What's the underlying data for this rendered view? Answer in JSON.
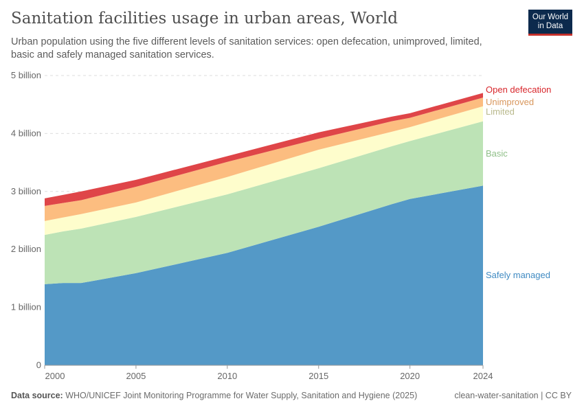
{
  "title": "Sanitation facilities usage in urban areas, World",
  "subtitle": "Urban population using the five different levels of sanitation services: open defecation, unimproved, limited, basic and safely managed sanitation services.",
  "logo": {
    "line1": "Our World",
    "line2": "in Data"
  },
  "footer": {
    "source_label": "Data source:",
    "source_text": "WHO/UNICEF Joint Monitoring Programme for Water Supply, Sanitation and Hygiene (2025)",
    "license": "clean-water-sanitation | CC BY"
  },
  "chart_data": {
    "type": "area",
    "stacked": true,
    "x": [
      2000,
      2001,
      2002,
      2005,
      2010,
      2015,
      2019,
      2020,
      2024
    ],
    "xlim": [
      2000,
      2024
    ],
    "ylim": [
      0,
      5000000000
    ],
    "grid": true,
    "legend": "right (inline labels)",
    "x_ticks": [
      "2000",
      "2005",
      "2010",
      "2015",
      "2020",
      "2024"
    ],
    "x_tick_values": [
      2000,
      2005,
      2010,
      2015,
      2020,
      2024
    ],
    "y_ticks": [
      "0",
      "1 billion",
      "2 billion",
      "3 billion",
      "4 billion",
      "5 billion"
    ],
    "y_tick_values": [
      0,
      1000000000,
      2000000000,
      3000000000,
      4000000000,
      5000000000
    ],
    "series": [
      {
        "name": "Safely managed",
        "color": "#5499c7",
        "label_color": "#3f8ac2",
        "values": [
          1400000000,
          1420000000,
          1420000000,
          1590000000,
          1940000000,
          2390000000,
          2780000000,
          2870000000,
          3100000000
        ]
      },
      {
        "name": "Basic",
        "color": "#bde3b6",
        "label_color": "#8fbf88",
        "values": [
          850000000,
          890000000,
          940000000,
          970000000,
          1010000000,
          1010000000,
          1000000000,
          1000000000,
          1110000000
        ]
      },
      {
        "name": "Limited",
        "color": "#fefdcc",
        "label_color": "#b9b98c",
        "values": [
          240000000,
          240000000,
          250000000,
          250000000,
          300000000,
          320000000,
          250000000,
          240000000,
          260000000
        ]
      },
      {
        "name": "Unimproved",
        "color": "#fcbd80",
        "label_color": "#d8965b",
        "values": [
          260000000,
          250000000,
          240000000,
          270000000,
          260000000,
          190000000,
          180000000,
          160000000,
          150000000
        ]
      },
      {
        "name": "Open defecation",
        "color": "#df4548",
        "label_color": "#d8262b",
        "values": [
          130000000,
          140000000,
          150000000,
          120000000,
          100000000,
          110000000,
          80000000,
          80000000,
          80000000
        ]
      }
    ]
  }
}
